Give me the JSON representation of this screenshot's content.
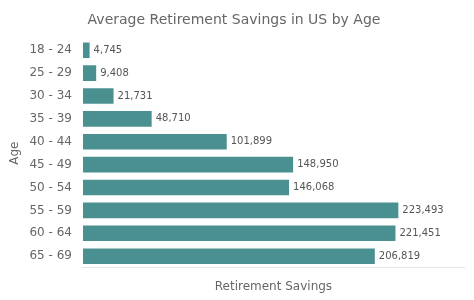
{
  "chart_data": {
    "type": "bar",
    "orientation": "horizontal",
    "title": "Average Retirement Savings in US by Age",
    "xlabel": "Retirement Savings",
    "ylabel": "Age",
    "categories": [
      "18 - 24",
      "25 - 29",
      "30 - 34",
      "35 - 39",
      "40 - 44",
      "45 - 49",
      "50 - 54",
      "55 - 59",
      "60 - 64",
      "65 - 69"
    ],
    "values": [
      4745,
      9408,
      21731,
      48710,
      101899,
      148950,
      146068,
      223493,
      221451,
      206819
    ],
    "value_labels": [
      "4,745",
      "9,408",
      "21,731",
      "48,710",
      "101,899",
      "148,950",
      "146,068",
      "223,493",
      "221,451",
      "206,819"
    ],
    "data_labels": true,
    "color": "#4a9090",
    "xlim": [
      0,
      270000
    ],
    "grid": false,
    "tick_labels": "y"
  }
}
